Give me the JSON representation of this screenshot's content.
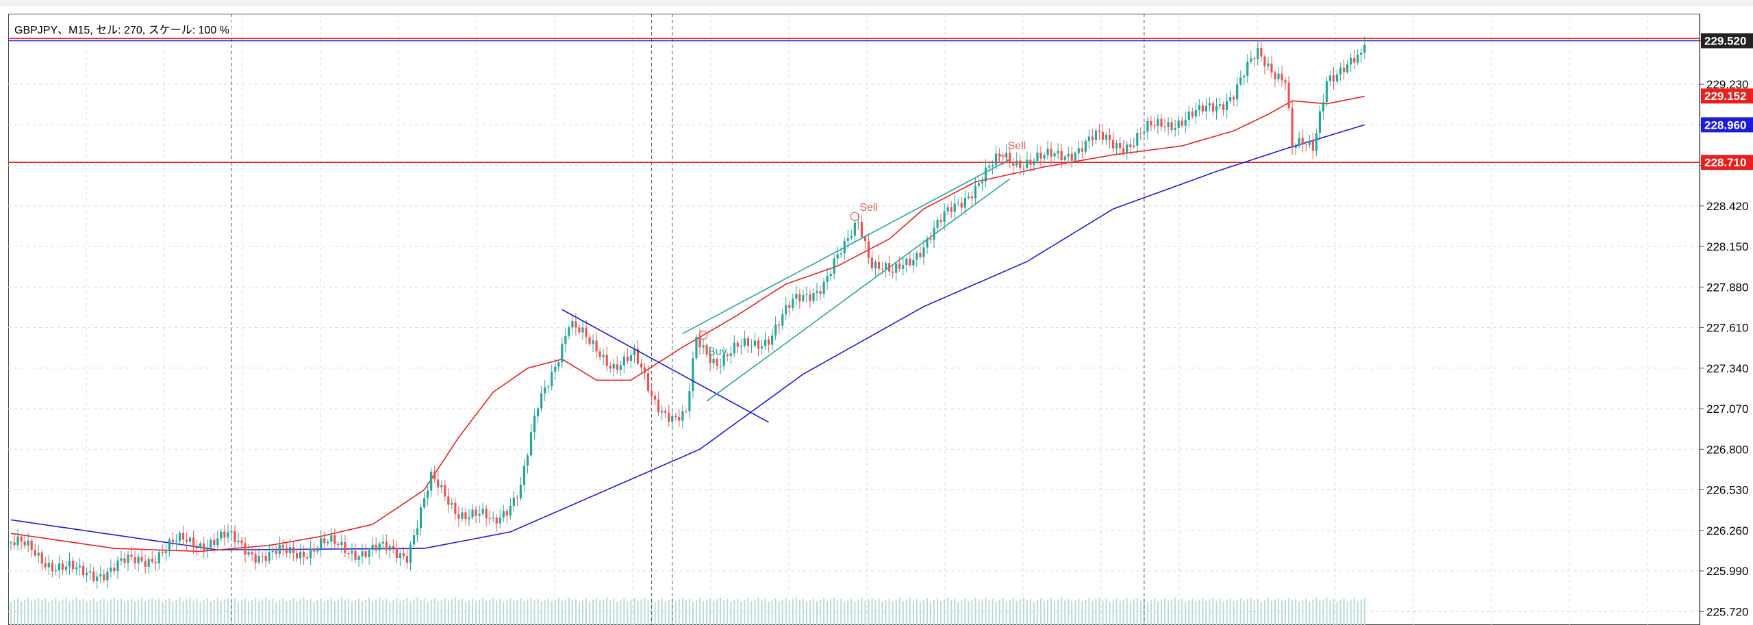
{
  "title": "GBPJPY、M15, セル: 270, スケール: 100 %",
  "colors": {
    "bull": "#26a69a",
    "bear": "#ef5350",
    "ma_fast": "#e8201e",
    "ma_slow": "#1b1bd8",
    "hline": "#e8201e",
    "bid_line": "#1b1bd8",
    "trendline": "#1b1bd8",
    "channel": "#26a69a",
    "marker": "#e0625a",
    "grid": "#d8d8d8",
    "vline": "#555555",
    "volume": "#b8dcd8"
  },
  "chart_data": {
    "type": "candlestick",
    "symbol": "GBPJPY",
    "timeframe": "M15",
    "ylim": [
      225.63,
      229.7
    ],
    "y_ticks": [
      225.72,
      225.99,
      226.26,
      226.53,
      226.8,
      227.07,
      227.34,
      227.61,
      227.88,
      228.15,
      228.42,
      228.69,
      228.96,
      229.23,
      229.52
    ],
    "price_tags": [
      {
        "value": 229.52,
        "label": "229.520",
        "style": "bid"
      },
      {
        "value": 229.152,
        "label": "229.152",
        "style": "red"
      },
      {
        "value": 228.96,
        "label": "228.960",
        "style": "blue"
      },
      {
        "value": 228.71,
        "label": "228.710",
        "style": "red"
      }
    ],
    "horizontal_lines": [
      {
        "value": 228.71,
        "color": "hline"
      },
      {
        "value": 229.52,
        "color": "bid_line"
      },
      {
        "value": 229.535,
        "color": "hline"
      }
    ],
    "ma_fast_anchors": [
      [
        0,
        226.24
      ],
      [
        30,
        226.14
      ],
      [
        55,
        226.12
      ],
      [
        75,
        226.16
      ],
      [
        90,
        226.22
      ],
      [
        105,
        226.3
      ],
      [
        120,
        226.53
      ],
      [
        130,
        226.88
      ],
      [
        140,
        227.18
      ],
      [
        150,
        227.34
      ],
      [
        160,
        227.4
      ],
      [
        170,
        227.26
      ],
      [
        180,
        227.26
      ],
      [
        195,
        227.48
      ],
      [
        210,
        227.68
      ],
      [
        225,
        227.9
      ],
      [
        240,
        228.02
      ],
      [
        255,
        228.2
      ],
      [
        265,
        228.4
      ],
      [
        280,
        228.58
      ],
      [
        300,
        228.68
      ],
      [
        320,
        228.76
      ],
      [
        340,
        228.82
      ],
      [
        355,
        228.92
      ],
      [
        365,
        229.03
      ],
      [
        372,
        229.12
      ],
      [
        382,
        229.1
      ],
      [
        393,
        229.15
      ]
    ],
    "ma_slow_anchors": [
      [
        0,
        226.33
      ],
      [
        60,
        226.13
      ],
      [
        120,
        226.14
      ],
      [
        145,
        226.25
      ],
      [
        170,
        226.5
      ],
      [
        200,
        226.8
      ],
      [
        230,
        227.3
      ],
      [
        265,
        227.75
      ],
      [
        295,
        228.05
      ],
      [
        320,
        228.4
      ],
      [
        350,
        228.65
      ],
      [
        370,
        228.8
      ],
      [
        393,
        228.96
      ]
    ],
    "trendlines": [
      {
        "from": [
          160,
          227.73
        ],
        "to": [
          220,
          226.98
        ],
        "color": "trendline"
      },
      {
        "from": [
          195,
          227.57
        ],
        "to": [
          290,
          228.73
        ],
        "color": "channel"
      },
      {
        "from": [
          202,
          227.12
        ],
        "to": [
          290,
          228.6
        ],
        "color": "channel"
      }
    ],
    "markers": [
      {
        "label": "Buy",
        "index": 201,
        "price": 227.56,
        "text_price": 227.45
      },
      {
        "label": "Sell",
        "index": 245,
        "price": 228.35,
        "text_price": 228.41
      },
      {
        "label": "Sell",
        "index": 288,
        "price": 228.73,
        "text_price": 228.82
      }
    ],
    "vertical_lines": [
      64,
      186,
      192,
      329
    ],
    "candles": {
      "count": 394,
      "anchors": [
        [
          0,
          226.18
        ],
        [
          20,
          225.96
        ],
        [
          35,
          226.04
        ],
        [
          50,
          226.18
        ],
        [
          63,
          226.2
        ],
        [
          75,
          226.08
        ],
        [
          90,
          226.16
        ],
        [
          105,
          226.12
        ],
        [
          115,
          226.12
        ],
        [
          122,
          226.58
        ],
        [
          130,
          226.4
        ],
        [
          140,
          226.3
        ],
        [
          148,
          226.56
        ],
        [
          153,
          227.06
        ],
        [
          158,
          227.38
        ],
        [
          162,
          227.66
        ],
        [
          168,
          227.48
        ],
        [
          175,
          227.38
        ],
        [
          181,
          227.4
        ],
        [
          186,
          227.16
        ],
        [
          193,
          227.0
        ],
        [
          196,
          227.0
        ],
        [
          199,
          227.52
        ],
        [
          205,
          227.4
        ],
        [
          212,
          227.46
        ],
        [
          220,
          227.56
        ],
        [
          228,
          227.78
        ],
        [
          236,
          227.92
        ],
        [
          242,
          228.12
        ],
        [
          246,
          228.34
        ],
        [
          250,
          228.06
        ],
        [
          256,
          227.94
        ],
        [
          262,
          228.1
        ],
        [
          270,
          228.3
        ],
        [
          278,
          228.52
        ],
        [
          288,
          228.74
        ],
        [
          300,
          228.72
        ],
        [
          315,
          228.86
        ],
        [
          325,
          228.84
        ],
        [
          335,
          228.98
        ],
        [
          345,
          229.02
        ],
        [
          355,
          229.18
        ],
        [
          362,
          229.42
        ],
        [
          370,
          229.28
        ],
        [
          372,
          228.8
        ],
        [
          378,
          228.8
        ],
        [
          382,
          229.3
        ],
        [
          388,
          229.32
        ],
        [
          392,
          229.4
        ],
        [
          393,
          229.52
        ]
      ]
    }
  }
}
